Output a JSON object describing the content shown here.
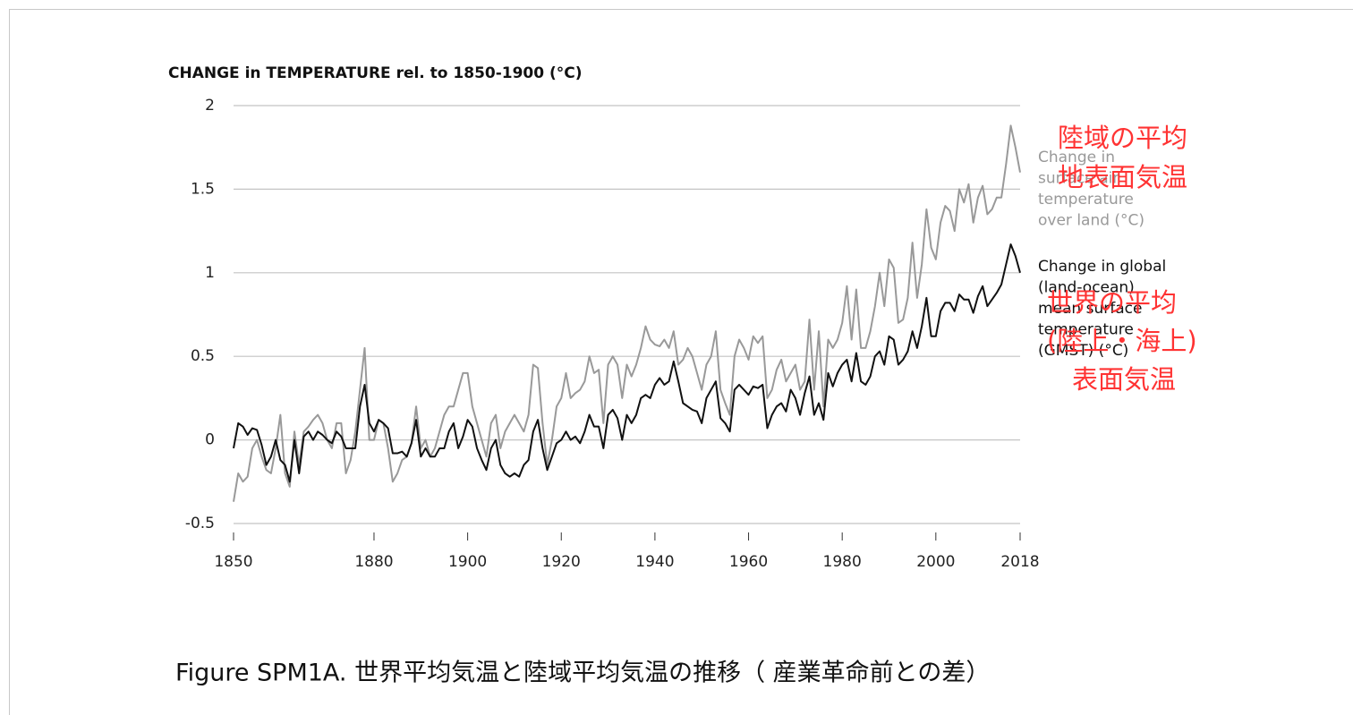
{
  "chart_data": {
    "type": "line",
    "title": "CHANGE in TEMPERATURE rel. to 1850-1900 (°C)",
    "caption": "Figure SPM1A. 世界平均気温と陸域平均気温の推移（ 産業革命前との差）",
    "x": [
      1850,
      1851,
      1852,
      1853,
      1854,
      1855,
      1856,
      1857,
      1858,
      1859,
      1860,
      1861,
      1862,
      1863,
      1864,
      1865,
      1866,
      1867,
      1868,
      1869,
      1870,
      1871,
      1872,
      1873,
      1874,
      1875,
      1876,
      1877,
      1878,
      1879,
      1880,
      1881,
      1882,
      1883,
      1884,
      1885,
      1886,
      1887,
      1888,
      1889,
      1890,
      1891,
      1892,
      1893,
      1894,
      1895,
      1896,
      1897,
      1898,
      1899,
      1900,
      1901,
      1902,
      1903,
      1904,
      1905,
      1906,
      1907,
      1908,
      1909,
      1910,
      1911,
      1912,
      1913,
      1914,
      1915,
      1916,
      1917,
      1918,
      1919,
      1920,
      1921,
      1922,
      1923,
      1924,
      1925,
      1926,
      1927,
      1928,
      1929,
      1930,
      1931,
      1932,
      1933,
      1934,
      1935,
      1936,
      1937,
      1938,
      1939,
      1940,
      1941,
      1942,
      1943,
      1944,
      1945,
      1946,
      1947,
      1948,
      1949,
      1950,
      1951,
      1952,
      1953,
      1954,
      1955,
      1956,
      1957,
      1958,
      1959,
      1960,
      1961,
      1962,
      1963,
      1964,
      1965,
      1966,
      1967,
      1968,
      1969,
      1970,
      1971,
      1972,
      1973,
      1974,
      1975,
      1976,
      1977,
      1978,
      1979,
      1980,
      1981,
      1982,
      1983,
      1984,
      1985,
      1986,
      1987,
      1988,
      1989,
      1990,
      1991,
      1992,
      1993,
      1994,
      1995,
      1996,
      1997,
      1998,
      1999,
      2000,
      2001,
      2002,
      2003,
      2004,
      2005,
      2006,
      2007,
      2008,
      2009,
      2010,
      2011,
      2012,
      2013,
      2014,
      2015,
      2016,
      2017,
      2018
    ],
    "xlim": [
      1850,
      2018
    ],
    "xticks": [
      1850,
      1880,
      1900,
      1920,
      1940,
      1960,
      1980,
      2000,
      2018
    ],
    "ylim": [
      -0.5,
      2
    ],
    "yticks": [
      -0.5,
      0,
      0.5,
      1,
      1.5,
      2
    ],
    "grid": true,
    "series": [
      {
        "name": "Change in surface air temperature over land (°C)",
        "label_lines": [
          "Change in",
          "surface air",
          "temperature",
          "over land (°C)"
        ],
        "color": "#999999",
        "values": [
          -0.37,
          -0.2,
          -0.25,
          -0.22,
          -0.05,
          0.0,
          -0.1,
          -0.18,
          -0.2,
          -0.05,
          0.15,
          -0.2,
          -0.28,
          0.05,
          -0.15,
          0.05,
          0.08,
          0.12,
          0.15,
          0.1,
          0.0,
          -0.05,
          0.1,
          0.1,
          -0.2,
          -0.12,
          0.05,
          0.3,
          0.55,
          0.0,
          0.0,
          0.12,
          0.1,
          -0.05,
          -0.25,
          -0.2,
          -0.12,
          -0.1,
          -0.02,
          0.2,
          -0.05,
          0.0,
          -0.1,
          -0.05,
          0.05,
          0.15,
          0.2,
          0.2,
          0.3,
          0.4,
          0.4,
          0.2,
          0.1,
          0.0,
          -0.1,
          0.1,
          0.15,
          -0.05,
          0.05,
          0.1,
          0.15,
          0.1,
          0.05,
          0.15,
          0.45,
          0.43,
          0.1,
          -0.15,
          0.0,
          0.2,
          0.25,
          0.4,
          0.25,
          0.28,
          0.3,
          0.35,
          0.5,
          0.4,
          0.42,
          0.1,
          0.45,
          0.5,
          0.45,
          0.25,
          0.45,
          0.38,
          0.45,
          0.55,
          0.68,
          0.6,
          0.57,
          0.56,
          0.6,
          0.55,
          0.65,
          0.45,
          0.48,
          0.55,
          0.5,
          0.4,
          0.3,
          0.45,
          0.5,
          0.65,
          0.3,
          0.22,
          0.15,
          0.5,
          0.6,
          0.55,
          0.48,
          0.62,
          0.58,
          0.62,
          0.25,
          0.3,
          0.42,
          0.48,
          0.35,
          0.4,
          0.45,
          0.3,
          0.35,
          0.72,
          0.3,
          0.65,
          0.2,
          0.6,
          0.55,
          0.6,
          0.7,
          0.92,
          0.6,
          0.9,
          0.55,
          0.55,
          0.65,
          0.8,
          1.0,
          0.8,
          1.08,
          1.03,
          0.7,
          0.72,
          0.85,
          1.18,
          0.85,
          1.05,
          1.38,
          1.15,
          1.08,
          1.3,
          1.4,
          1.37,
          1.25,
          1.5,
          1.42,
          1.53,
          1.3,
          1.45,
          1.52,
          1.35,
          1.38,
          1.45,
          1.45,
          1.65,
          1.88,
          1.75,
          1.6
        ]
      },
      {
        "name": "Change in global (land-ocean) mean surface temperature (GMST) (°C)",
        "label_lines": [
          "Change in global",
          "(land-ocean)",
          "mean surface",
          "temperature",
          "(GMST) (°C)"
        ],
        "color": "#111111",
        "values": [
          -0.05,
          0.1,
          0.08,
          0.03,
          0.07,
          0.06,
          -0.03,
          -0.15,
          -0.1,
          0.0,
          -0.12,
          -0.15,
          -0.25,
          0.0,
          -0.2,
          0.02,
          0.05,
          0.0,
          0.05,
          0.03,
          0.0,
          -0.02,
          0.05,
          0.02,
          -0.05,
          -0.05,
          -0.05,
          0.2,
          0.33,
          0.1,
          0.05,
          0.12,
          0.1,
          0.07,
          -0.08,
          -0.08,
          -0.07,
          -0.1,
          -0.02,
          0.12,
          -0.1,
          -0.05,
          -0.1,
          -0.1,
          -0.05,
          -0.05,
          0.05,
          0.1,
          -0.05,
          0.02,
          0.12,
          0.08,
          -0.05,
          -0.12,
          -0.18,
          -0.05,
          0.0,
          -0.15,
          -0.2,
          -0.22,
          -0.2,
          -0.22,
          -0.15,
          -0.12,
          0.05,
          0.12,
          -0.05,
          -0.18,
          -0.1,
          -0.02,
          0.0,
          0.05,
          0.0,
          0.02,
          -0.02,
          0.05,
          0.15,
          0.08,
          0.08,
          -0.05,
          0.15,
          0.18,
          0.13,
          0.0,
          0.15,
          0.1,
          0.15,
          0.25,
          0.27,
          0.25,
          0.33,
          0.37,
          0.33,
          0.35,
          0.47,
          0.35,
          0.22,
          0.2,
          0.18,
          0.17,
          0.1,
          0.25,
          0.3,
          0.35,
          0.13,
          0.1,
          0.05,
          0.3,
          0.33,
          0.3,
          0.27,
          0.32,
          0.31,
          0.33,
          0.07,
          0.15,
          0.2,
          0.22,
          0.17,
          0.3,
          0.25,
          0.15,
          0.28,
          0.38,
          0.15,
          0.22,
          0.12,
          0.4,
          0.32,
          0.4,
          0.45,
          0.48,
          0.35,
          0.52,
          0.35,
          0.33,
          0.38,
          0.5,
          0.53,
          0.45,
          0.62,
          0.6,
          0.45,
          0.48,
          0.53,
          0.65,
          0.55,
          0.68,
          0.85,
          0.62,
          0.62,
          0.77,
          0.82,
          0.82,
          0.77,
          0.87,
          0.84,
          0.84,
          0.76,
          0.86,
          0.92,
          0.8,
          0.84,
          0.88,
          0.93,
          1.05,
          1.17,
          1.1,
          1.0
        ]
      }
    ],
    "annotations": [
      {
        "lines": [
          "陸域の平均",
          "地表面気温"
        ],
        "color": "#ff3333"
      },
      {
        "lines": [
          "世界の平均",
          "(陸上・海上)",
          "表面気温"
        ],
        "color": "#ff3333"
      }
    ]
  }
}
